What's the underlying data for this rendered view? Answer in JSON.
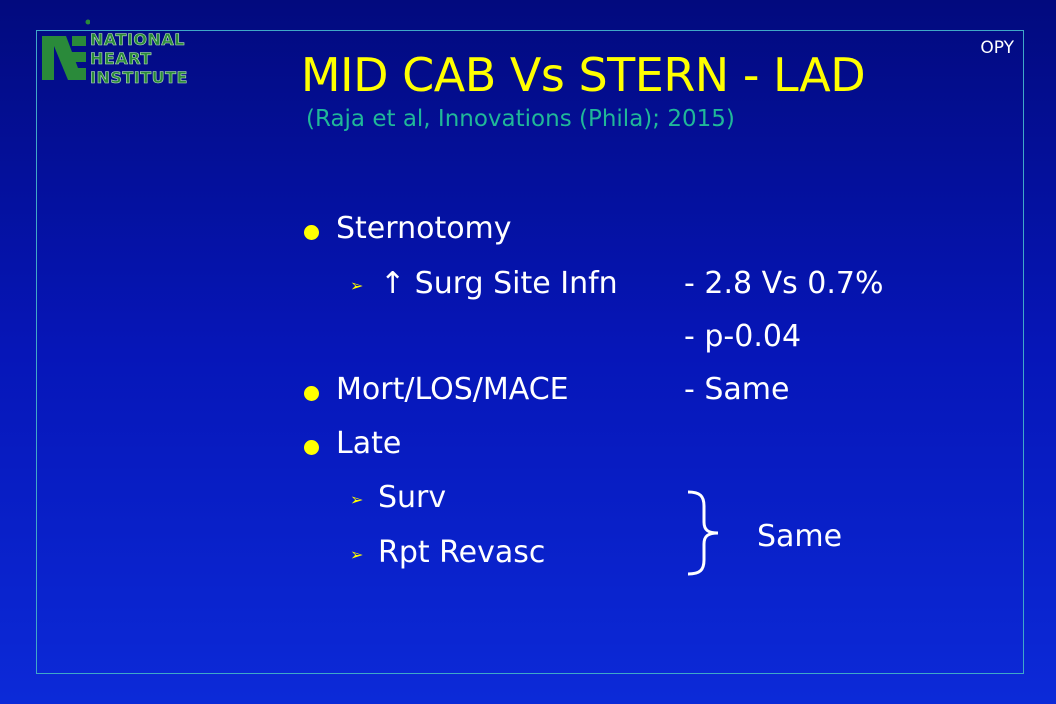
{
  "slide": {
    "logo": {
      "line1": "NATIONAL",
      "line2": "HEART",
      "line3": "INSTITUTE"
    },
    "corner_label": "OPY",
    "title": "MID CAB Vs STERN - LAD",
    "subtitle": "(Raja et al, Innovations (Phila); 2015)",
    "bullets": [
      {
        "label": "Sternotomy"
      },
      {
        "label": "Mort/LOS/MACE",
        "value": "- Same"
      },
      {
        "label": "Late"
      }
    ],
    "sub_items": [
      {
        "label": "↑ Surg Site Infn",
        "value": "- 2.8 Vs 0.7%"
      },
      {
        "value": "- p-0.04"
      },
      {
        "label": "Surv"
      },
      {
        "label": "Rpt Revasc"
      }
    ],
    "brace_label": "Same",
    "colors": {
      "title": "#ffff00",
      "subtitle": "#20b898",
      "bullet": "#ffff00",
      "text": "#ffffff",
      "frame": "#3fa8c8"
    }
  }
}
